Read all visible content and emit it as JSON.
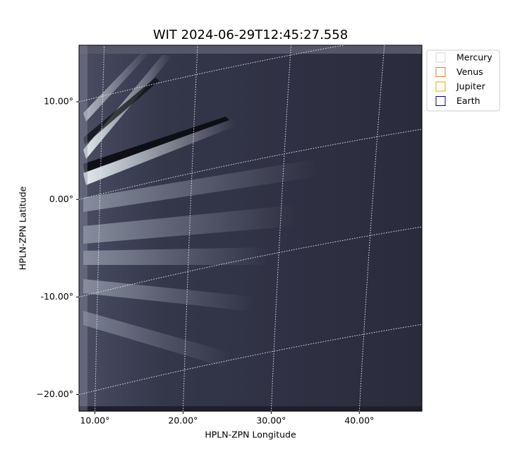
{
  "chart_data": {
    "type": "image",
    "title": "WIT 2024-06-29T12:45:27.558",
    "xlabel": "HPLN-ZPN Longitude",
    "ylabel": "HPLN-ZPN Latitude",
    "xlim": [
      8.2,
      47.1
    ],
    "ylim": [
      -21.7,
      15.8
    ],
    "xticks": [
      {
        "value": 10,
        "label": "10.00°"
      },
      {
        "value": 20,
        "label": "20.00°"
      },
      {
        "value": 30,
        "label": "30.00°"
      },
      {
        "value": 40,
        "label": "40.00°"
      }
    ],
    "yticks": [
      {
        "value": 10,
        "label": "10.00°"
      },
      {
        "value": 0,
        "label": "0.00°"
      },
      {
        "value": -10,
        "label": "-10.00°"
      },
      {
        "value": -20,
        "label": "−20.00°"
      }
    ],
    "grid": true,
    "legend": "outside right",
    "series": [
      {
        "name": "Mercury",
        "color": "#d9d9d9"
      },
      {
        "name": "Venus",
        "color": "#e07b39"
      },
      {
        "name": "Jupiter",
        "color": "#e8a317"
      },
      {
        "name": "Earth",
        "color": "#000080"
      }
    ]
  }
}
